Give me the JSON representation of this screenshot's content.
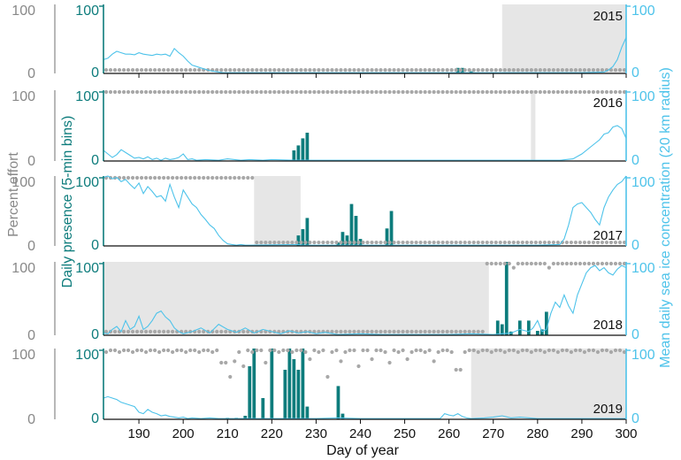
{
  "figure": {
    "xlabel": "Day of year",
    "ylabel_left_outer": "Percent effort",
    "ylabel_left_inner": "Daily presence (5-min bins)",
    "ylabel_right": "Mean daily sea ice concentration (20 km radius)",
    "colors": {
      "presence": "#0d7c7c",
      "ice": "#4ec3ea",
      "effort": "#a8a8a8",
      "shade": "#e6e6e6",
      "axis": "#111111"
    }
  },
  "chart_data": [
    {
      "type": "bar",
      "year": "2015",
      "xlim": [
        182,
        300
      ],
      "ylim": [
        0,
        100
      ],
      "left_ticks": [
        "0",
        "100"
      ],
      "presence_ticks": [
        "0",
        "100"
      ],
      "right_ticks": [
        "0",
        "100"
      ],
      "xticks": [
        "190",
        "200",
        "210",
        "220",
        "230",
        "240",
        "250",
        "260",
        "270",
        "280",
        "290",
        "300"
      ],
      "no_effort": [
        [
          272,
          300
        ]
      ],
      "presence": [
        [
          262,
          8
        ],
        [
          263,
          8
        ],
        [
          265,
          3
        ]
      ],
      "effort_pattern": "low",
      "ice": [
        [
          182,
          20
        ],
        [
          183,
          22
        ],
        [
          184,
          28
        ],
        [
          185,
          32
        ],
        [
          186,
          30
        ],
        [
          187,
          28
        ],
        [
          188,
          28
        ],
        [
          189,
          27
        ],
        [
          190,
          30
        ],
        [
          191,
          28
        ],
        [
          192,
          27
        ],
        [
          193,
          26
        ],
        [
          194,
          28
        ],
        [
          195,
          27
        ],
        [
          196,
          28
        ],
        [
          197,
          25
        ],
        [
          198,
          36
        ],
        [
          199,
          30
        ],
        [
          200,
          25
        ],
        [
          201,
          18
        ],
        [
          202,
          12
        ],
        [
          203,
          10
        ],
        [
          204,
          8
        ],
        [
          205,
          6
        ],
        [
          206,
          4
        ],
        [
          207,
          3
        ],
        [
          208,
          2
        ],
        [
          209,
          1
        ],
        [
          210,
          1
        ],
        [
          215,
          1
        ],
        [
          220,
          1
        ],
        [
          225,
          1
        ],
        [
          230,
          1
        ],
        [
          240,
          1
        ],
        [
          250,
          1
        ],
        [
          260,
          1
        ],
        [
          268,
          1
        ],
        [
          272,
          1
        ],
        [
          280,
          1
        ],
        [
          290,
          1
        ],
        [
          295,
          2
        ],
        [
          296,
          5
        ],
        [
          297,
          10
        ],
        [
          298,
          20
        ],
        [
          299,
          38
        ],
        [
          300,
          52
        ]
      ]
    },
    {
      "type": "bar",
      "year": "2016",
      "xlim": [
        182,
        300
      ],
      "ylim": [
        0,
        100
      ],
      "left_ticks": [
        "0",
        "100"
      ],
      "presence_ticks": [
        "0",
        "100"
      ],
      "right_ticks": [
        "0",
        "100"
      ],
      "xticks": [],
      "no_effort": [
        [
          278.5,
          279.5
        ]
      ],
      "presence": [
        [
          225,
          15
        ],
        [
          226,
          22
        ],
        [
          227,
          32
        ],
        [
          228,
          40
        ]
      ],
      "effort_pattern": "full",
      "ice": [
        [
          182,
          15
        ],
        [
          183,
          10
        ],
        [
          184,
          5
        ],
        [
          185,
          9
        ],
        [
          186,
          16
        ],
        [
          187,
          12
        ],
        [
          188,
          8
        ],
        [
          189,
          4
        ],
        [
          190,
          5
        ],
        [
          191,
          3
        ],
        [
          192,
          6
        ],
        [
          193,
          2
        ],
        [
          194,
          4
        ],
        [
          195,
          1
        ],
        [
          196,
          4
        ],
        [
          197,
          2
        ],
        [
          198,
          3
        ],
        [
          199,
          5
        ],
        [
          200,
          10
        ],
        [
          201,
          2
        ],
        [
          202,
          3
        ],
        [
          203,
          1
        ],
        [
          205,
          2
        ],
        [
          208,
          1
        ],
        [
          210,
          3
        ],
        [
          213,
          1
        ],
        [
          215,
          2
        ],
        [
          218,
          1
        ],
        [
          220,
          2
        ],
        [
          225,
          1
        ],
        [
          230,
          1
        ],
        [
          240,
          1
        ],
        [
          250,
          1
        ],
        [
          260,
          1
        ],
        [
          270,
          1
        ],
        [
          280,
          1
        ],
        [
          285,
          1
        ],
        [
          288,
          3
        ],
        [
          290,
          10
        ],
        [
          292,
          20
        ],
        [
          294,
          30
        ],
        [
          295,
          38
        ],
        [
          296,
          40
        ],
        [
          297,
          48
        ],
        [
          298,
          50
        ],
        [
          299,
          46
        ],
        [
          300,
          32
        ]
      ]
    },
    {
      "type": "bar",
      "year": "2017",
      "xlim": [
        182,
        300
      ],
      "ylim": [
        0,
        100
      ],
      "left_ticks": [
        "0",
        "100"
      ],
      "presence_ticks": [
        "0",
        "100"
      ],
      "right_ticks": [
        "0",
        "100"
      ],
      "xticks": [],
      "no_effort": [
        [
          216,
          226.5
        ]
      ],
      "presence": [
        [
          226,
          15
        ],
        [
          227,
          24
        ],
        [
          228,
          40
        ],
        [
          235,
          5
        ],
        [
          236,
          20
        ],
        [
          237,
          15
        ],
        [
          238,
          60
        ],
        [
          239,
          43
        ],
        [
          240,
          10
        ],
        [
          246,
          25
        ],
        [
          247,
          50
        ]
      ],
      "effort_pattern": "2017",
      "ice": [
        [
          182,
          98
        ],
        [
          183,
          100
        ],
        [
          184,
          96
        ],
        [
          185,
          98
        ],
        [
          186,
          92
        ],
        [
          187,
          95
        ],
        [
          188,
          88
        ],
        [
          189,
          82
        ],
        [
          190,
          90
        ],
        [
          191,
          75
        ],
        [
          192,
          85
        ],
        [
          193,
          78
        ],
        [
          194,
          70
        ],
        [
          195,
          72
        ],
        [
          196,
          64
        ],
        [
          197,
          88
        ],
        [
          198,
          70
        ],
        [
          199,
          55
        ],
        [
          200,
          80
        ],
        [
          201,
          70
        ],
        [
          202,
          60
        ],
        [
          203,
          55
        ],
        [
          204,
          45
        ],
        [
          205,
          38
        ],
        [
          206,
          30
        ],
        [
          207,
          25
        ],
        [
          208,
          15
        ],
        [
          209,
          8
        ],
        [
          210,
          3
        ],
        [
          211,
          2
        ],
        [
          212,
          1
        ],
        [
          213,
          2
        ],
        [
          214,
          1
        ],
        [
          215,
          1
        ],
        [
          226,
          2
        ],
        [
          227,
          1
        ],
        [
          230,
          1
        ],
        [
          240,
          1
        ],
        [
          250,
          1
        ],
        [
          260,
          1
        ],
        [
          270,
          1
        ],
        [
          280,
          1
        ],
        [
          285,
          2
        ],
        [
          286,
          10
        ],
        [
          287,
          30
        ],
        [
          288,
          55
        ],
        [
          289,
          60
        ],
        [
          290,
          62
        ],
        [
          291,
          55
        ],
        [
          292,
          48
        ],
        [
          293,
          38
        ],
        [
          294,
          30
        ],
        [
          295,
          55
        ],
        [
          296,
          70
        ],
        [
          297,
          80
        ],
        [
          298,
          88
        ],
        [
          299,
          92
        ],
        [
          300,
          100
        ]
      ]
    },
    {
      "type": "bar",
      "year": "2018",
      "xlim": [
        182,
        300
      ],
      "ylim": [
        0,
        100
      ],
      "left_ticks": [
        "0",
        "100"
      ],
      "presence_ticks": [
        "0",
        "100"
      ],
      "right_ticks": [
        "0",
        "100"
      ],
      "xticks": [],
      "no_effort": [
        [
          182,
          269
        ]
      ],
      "presence": [
        [
          271,
          20
        ],
        [
          272,
          15
        ],
        [
          273,
          100
        ],
        [
          274,
          5
        ],
        [
          276,
          20
        ],
        [
          278,
          20
        ],
        [
          280,
          6
        ],
        [
          281,
          8
        ],
        [
          282,
          32
        ]
      ],
      "effort_pattern": "2018",
      "ice": [
        [
          182,
          3
        ],
        [
          183,
          2
        ],
        [
          184,
          8
        ],
        [
          185,
          12
        ],
        [
          186,
          5
        ],
        [
          187,
          20
        ],
        [
          188,
          8
        ],
        [
          189,
          12
        ],
        [
          190,
          26
        ],
        [
          191,
          8
        ],
        [
          192,
          12
        ],
        [
          193,
          20
        ],
        [
          194,
          30
        ],
        [
          195,
          33
        ],
        [
          196,
          25
        ],
        [
          197,
          20
        ],
        [
          198,
          10
        ],
        [
          199,
          5
        ],
        [
          200,
          2
        ],
        [
          202,
          5
        ],
        [
          204,
          10
        ],
        [
          206,
          3
        ],
        [
          208,
          15
        ],
        [
          210,
          8
        ],
        [
          212,
          4
        ],
        [
          214,
          10
        ],
        [
          216,
          3
        ],
        [
          218,
          8
        ],
        [
          220,
          5
        ],
        [
          222,
          2
        ],
        [
          224,
          6
        ],
        [
          226,
          3
        ],
        [
          228,
          5
        ],
        [
          230,
          2
        ],
        [
          232,
          4
        ],
        [
          235,
          1
        ],
        [
          240,
          2
        ],
        [
          245,
          1
        ],
        [
          250,
          1
        ],
        [
          255,
          1
        ],
        [
          260,
          1
        ],
        [
          265,
          2
        ],
        [
          270,
          1
        ],
        [
          272,
          2
        ],
        [
          274,
          3
        ],
        [
          276,
          8
        ],
        [
          278,
          5
        ],
        [
          279,
          10
        ],
        [
          280,
          20
        ],
        [
          281,
          5
        ],
        [
          282,
          8
        ],
        [
          283,
          30
        ],
        [
          284,
          45
        ],
        [
          285,
          38
        ],
        [
          286,
          55
        ],
        [
          287,
          40
        ],
        [
          288,
          30
        ],
        [
          289,
          55
        ],
        [
          290,
          70
        ],
        [
          291,
          85
        ],
        [
          292,
          92
        ],
        [
          293,
          95
        ],
        [
          294,
          88
        ],
        [
          295,
          92
        ],
        [
          296,
          85
        ],
        [
          297,
          82
        ],
        [
          298,
          90
        ],
        [
          299,
          95
        ],
        [
          300,
          92
        ]
      ]
    },
    {
      "type": "bar",
      "year": "2019",
      "xlim": [
        182,
        300
      ],
      "ylim": [
        0,
        100
      ],
      "left_ticks": [
        "0",
        "100"
      ],
      "presence_ticks": [
        "0",
        "100"
      ],
      "right_ticks": [
        "0",
        "100"
      ],
      "xticks": [],
      "no_effort": [
        [
          265,
          300
        ]
      ],
      "presence": [
        [
          210,
          2
        ],
        [
          212,
          2
        ],
        [
          214,
          5
        ],
        [
          215,
          75
        ],
        [
          216,
          100
        ],
        [
          218,
          30
        ],
        [
          220,
          100
        ],
        [
          223,
          70
        ],
        [
          224,
          100
        ],
        [
          225,
          85
        ],
        [
          226,
          70
        ],
        [
          227,
          100
        ],
        [
          228,
          18
        ],
        [
          235,
          47
        ],
        [
          236,
          8
        ]
      ],
      "effort_pattern": "2019",
      "ice": [
        [
          182,
          30
        ],
        [
          183,
          32
        ],
        [
          184,
          30
        ],
        [
          185,
          28
        ],
        [
          186,
          24
        ],
        [
          187,
          22
        ],
        [
          188,
          20
        ],
        [
          189,
          18
        ],
        [
          190,
          10
        ],
        [
          191,
          8
        ],
        [
          192,
          14
        ],
        [
          193,
          10
        ],
        [
          194,
          8
        ],
        [
          195,
          5
        ],
        [
          196,
          6
        ],
        [
          197,
          4
        ],
        [
          198,
          3
        ],
        [
          199,
          2
        ],
        [
          200,
          3
        ],
        [
          201,
          1
        ],
        [
          202,
          2
        ],
        [
          204,
          1
        ],
        [
          206,
          2
        ],
        [
          208,
          1
        ],
        [
          210,
          1
        ],
        [
          215,
          1
        ],
        [
          220,
          1
        ],
        [
          225,
          1
        ],
        [
          230,
          1
        ],
        [
          235,
          2
        ],
        [
          240,
          1
        ],
        [
          245,
          1
        ],
        [
          250,
          1
        ],
        [
          255,
          1
        ],
        [
          258,
          1
        ],
        [
          259,
          8
        ],
        [
          260,
          6
        ],
        [
          261,
          5
        ],
        [
          262,
          8
        ],
        [
          263,
          4
        ],
        [
          264,
          2
        ],
        [
          265,
          1
        ],
        [
          268,
          2
        ],
        [
          270,
          3
        ],
        [
          272,
          5
        ],
        [
          274,
          2
        ],
        [
          276,
          3
        ],
        [
          280,
          1
        ],
        [
          290,
          1
        ],
        [
          300,
          1
        ]
      ]
    }
  ]
}
